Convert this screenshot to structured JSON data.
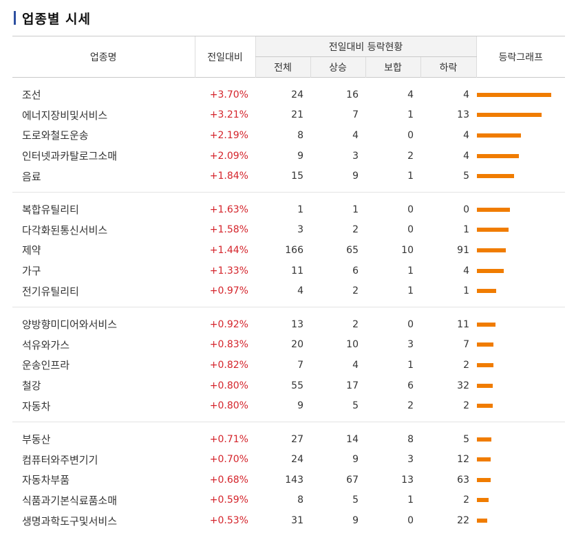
{
  "title": "업종별 시세",
  "header": {
    "name": "업종명",
    "change": "전일대비",
    "group": "전일대비 등락현황",
    "total": "전체",
    "up": "상승",
    "flat": "보합",
    "down": "하락",
    "graph": "등락그래프"
  },
  "colors": {
    "accent": "#2d4fa0",
    "up": "#d4232a",
    "bar": "#f07c00"
  },
  "groups": [
    {
      "rows": [
        {
          "name": "조선",
          "change": "+3.70%",
          "pct": 3.7,
          "total": "24",
          "up": "16",
          "flat": "4",
          "down": "4"
        },
        {
          "name": "에너지장비및서비스",
          "change": "+3.21%",
          "pct": 3.21,
          "total": "21",
          "up": "7",
          "flat": "1",
          "down": "13"
        },
        {
          "name": "도로와철도운송",
          "change": "+2.19%",
          "pct": 2.19,
          "total": "8",
          "up": "4",
          "flat": "0",
          "down": "4"
        },
        {
          "name": "인터넷과카탈로그소매",
          "change": "+2.09%",
          "pct": 2.09,
          "total": "9",
          "up": "3",
          "flat": "2",
          "down": "4"
        },
        {
          "name": "음료",
          "change": "+1.84%",
          "pct": 1.84,
          "total": "15",
          "up": "9",
          "flat": "1",
          "down": "5"
        }
      ]
    },
    {
      "rows": [
        {
          "name": "복합유틸리티",
          "change": "+1.63%",
          "pct": 1.63,
          "total": "1",
          "up": "1",
          "flat": "0",
          "down": "0"
        },
        {
          "name": "다각화된통신서비스",
          "change": "+1.58%",
          "pct": 1.58,
          "total": "3",
          "up": "2",
          "flat": "0",
          "down": "1"
        },
        {
          "name": "제약",
          "change": "+1.44%",
          "pct": 1.44,
          "total": "166",
          "up": "65",
          "flat": "10",
          "down": "91"
        },
        {
          "name": "가구",
          "change": "+1.33%",
          "pct": 1.33,
          "total": "11",
          "up": "6",
          "flat": "1",
          "down": "4"
        },
        {
          "name": "전기유틸리티",
          "change": "+0.97%",
          "pct": 0.97,
          "total": "4",
          "up": "2",
          "flat": "1",
          "down": "1"
        }
      ]
    },
    {
      "rows": [
        {
          "name": "양방향미디어와서비스",
          "change": "+0.92%",
          "pct": 0.92,
          "total": "13",
          "up": "2",
          "flat": "0",
          "down": "11"
        },
        {
          "name": "석유와가스",
          "change": "+0.83%",
          "pct": 0.83,
          "total": "20",
          "up": "10",
          "flat": "3",
          "down": "7"
        },
        {
          "name": "운송인프라",
          "change": "+0.82%",
          "pct": 0.82,
          "total": "7",
          "up": "4",
          "flat": "1",
          "down": "2"
        },
        {
          "name": "철강",
          "change": "+0.80%",
          "pct": 0.8,
          "total": "55",
          "up": "17",
          "flat": "6",
          "down": "32"
        },
        {
          "name": "자동차",
          "change": "+0.80%",
          "pct": 0.8,
          "total": "9",
          "up": "5",
          "flat": "2",
          "down": "2"
        }
      ]
    },
    {
      "rows": [
        {
          "name": "부동산",
          "change": "+0.71%",
          "pct": 0.71,
          "total": "27",
          "up": "14",
          "flat": "8",
          "down": "5"
        },
        {
          "name": "컴퓨터와주변기기",
          "change": "+0.70%",
          "pct": 0.7,
          "total": "24",
          "up": "9",
          "flat": "3",
          "down": "12"
        },
        {
          "name": "자동차부품",
          "change": "+0.68%",
          "pct": 0.68,
          "total": "143",
          "up": "67",
          "flat": "13",
          "down": "63"
        },
        {
          "name": "식품과기본식료품소매",
          "change": "+0.59%",
          "pct": 0.59,
          "total": "8",
          "up": "5",
          "flat": "1",
          "down": "2"
        },
        {
          "name": "생명과학도구및서비스",
          "change": "+0.53%",
          "pct": 0.53,
          "total": "31",
          "up": "9",
          "flat": "0",
          "down": "22"
        }
      ]
    }
  ]
}
